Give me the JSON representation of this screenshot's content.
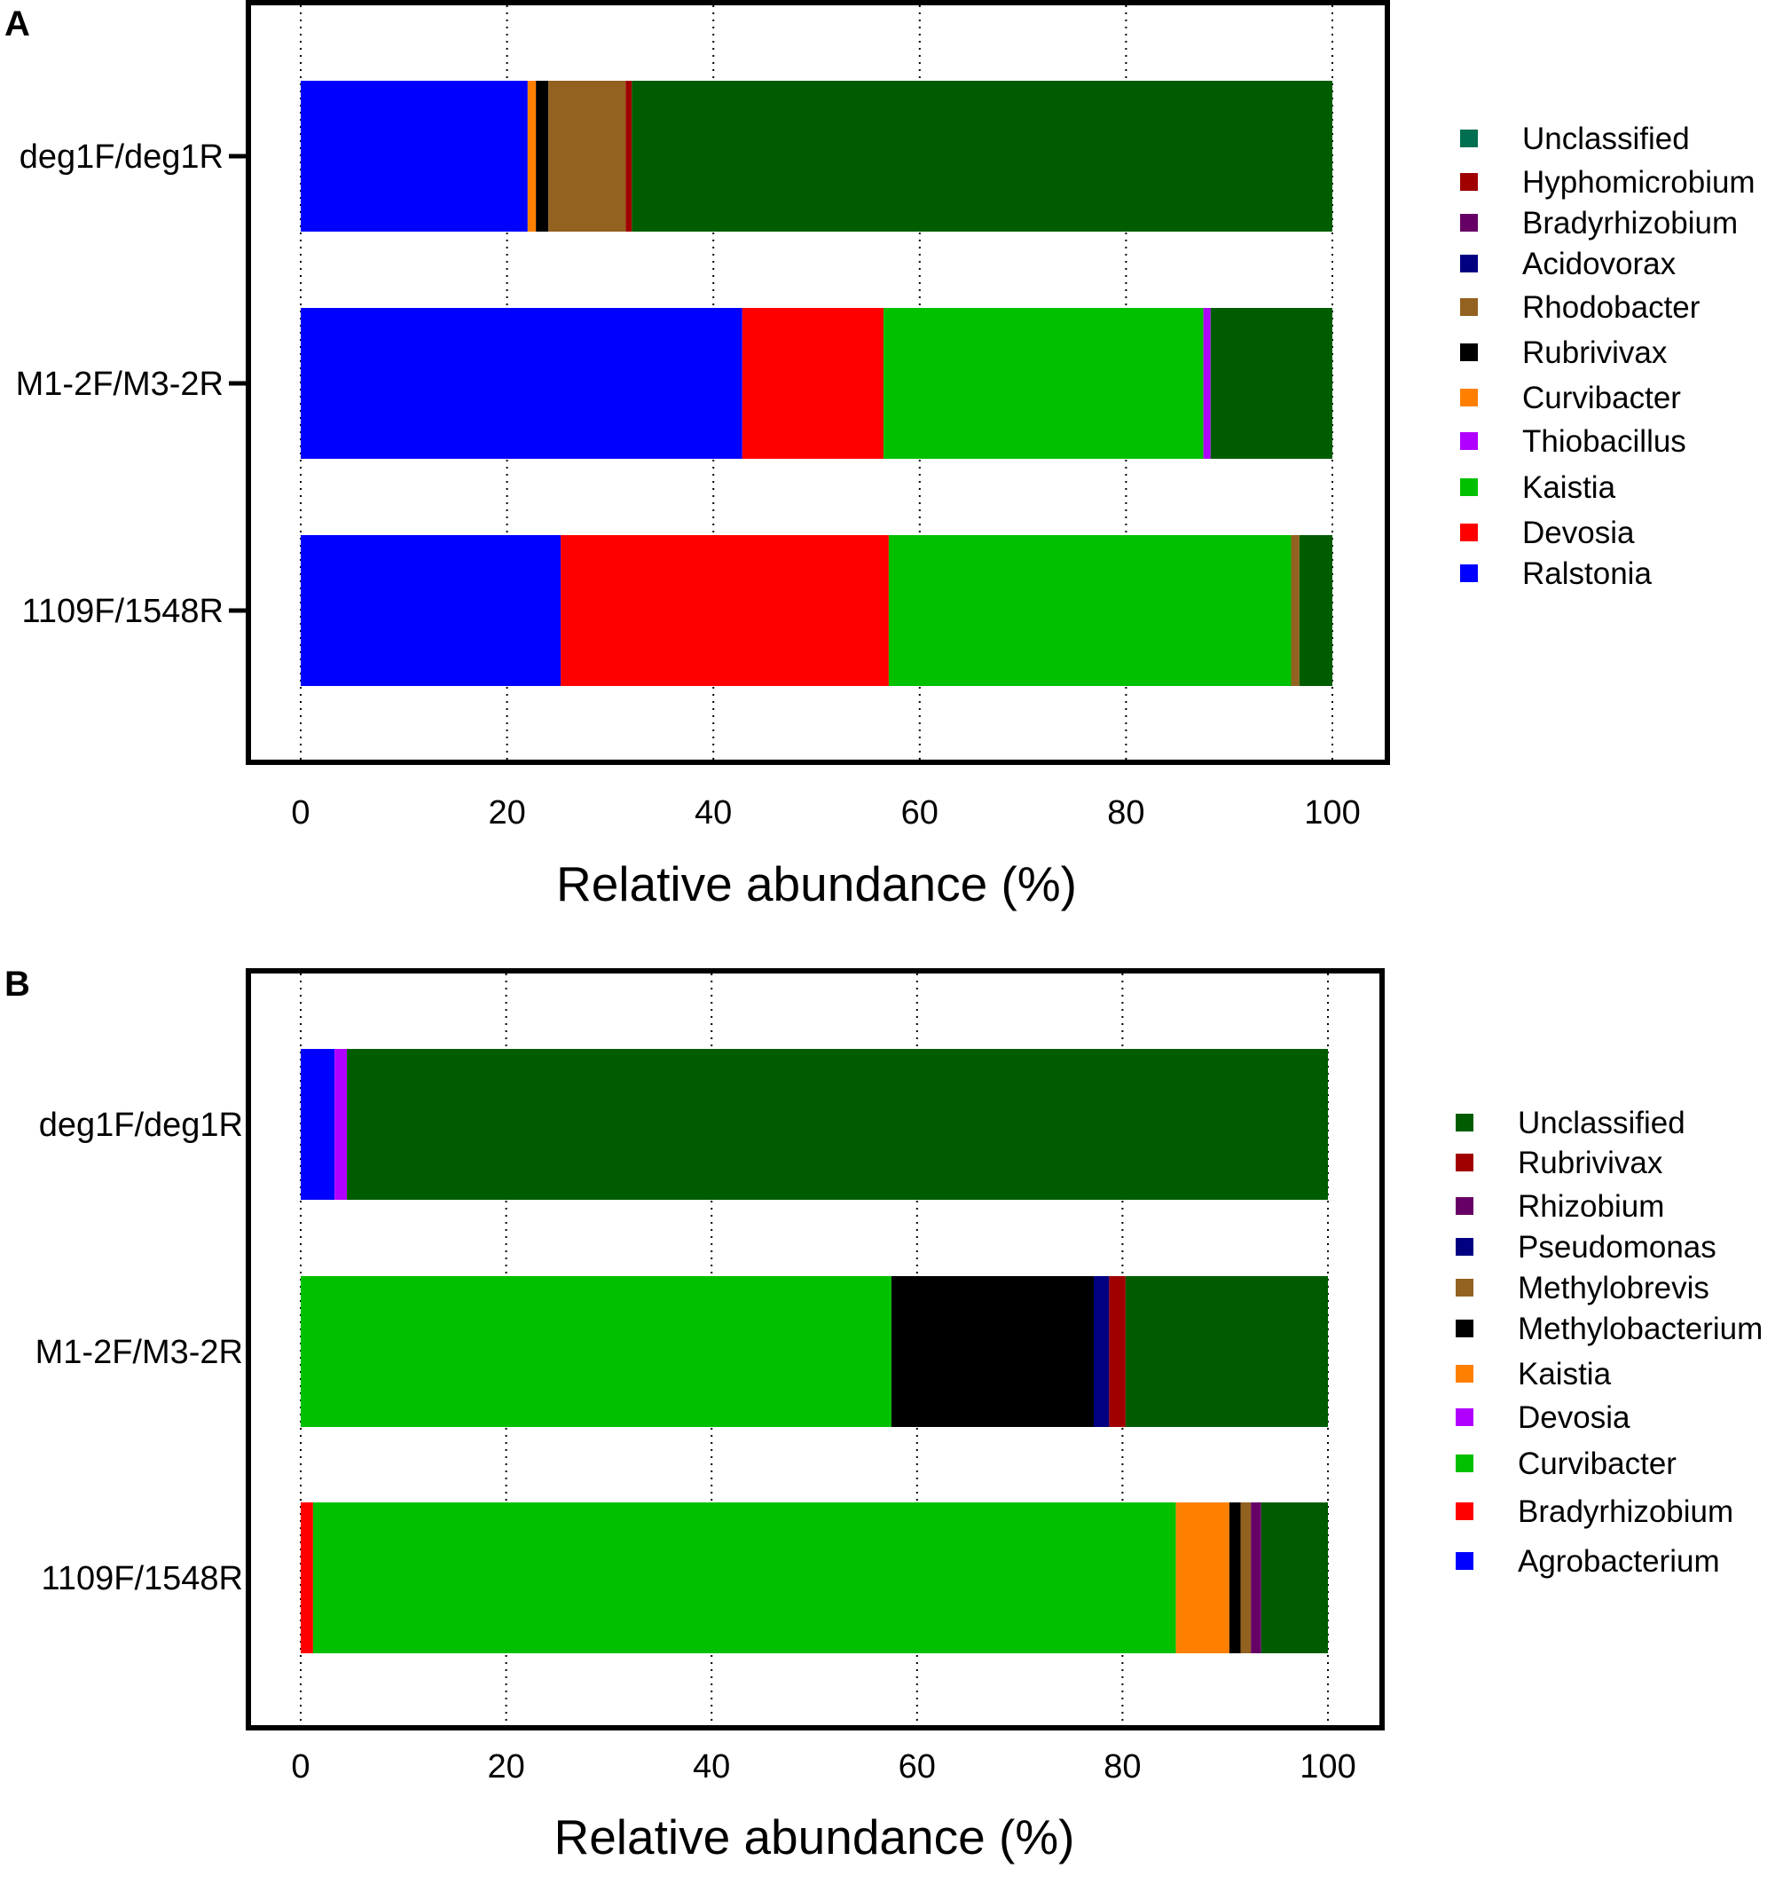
{
  "chart_data": [
    {
      "panel": "A",
      "type": "bar",
      "orientation": "horizontal",
      "stacked": true,
      "categories": [
        "deg1F/deg1R",
        "M1-2F/M3-2R",
        "1109F/1548R"
      ],
      "xlabel": "Relative abundance (%)",
      "xlim": [
        0,
        100
      ],
      "xticks": [
        0,
        20,
        40,
        60,
        80,
        100
      ],
      "grid": "vertical dotted",
      "legend": "right",
      "series": [
        {
          "name": "Ralstonia",
          "color": "#0000ff",
          "values": [
            22.0,
            42.8,
            25.2
          ]
        },
        {
          "name": "Devosia",
          "color": "#ff0000",
          "values": [
            0.0,
            13.7,
            31.8
          ]
        },
        {
          "name": "Kaistia",
          "color": "#00c000",
          "values": [
            0.0,
            31.0,
            39.0
          ]
        },
        {
          "name": "Thiobacillus",
          "color": "#b000ff",
          "values": [
            0.0,
            0.7,
            0.0
          ]
        },
        {
          "name": "Curvibacter",
          "color": "#ff8000",
          "values": [
            0.8,
            0.0,
            0.0
          ]
        },
        {
          "name": "Rubrivivax",
          "color": "#000000",
          "values": [
            1.2,
            0.0,
            0.0
          ]
        },
        {
          "name": "Rhodobacter",
          "color": "#936120",
          "values": [
            7.5,
            0.0,
            0.8
          ]
        },
        {
          "name": "Acidovorax",
          "color": "#000080",
          "values": [
            0.0,
            0.0,
            0.0
          ]
        },
        {
          "name": "Bradyrhizobium",
          "color": "#660066",
          "values": [
            0.0,
            0.0,
            0.0
          ]
        },
        {
          "name": "Hyphomicrobium",
          "color": "#a00000",
          "values": [
            0.6,
            0.0,
            0.0
          ]
        },
        {
          "name": "Unclassified",
          "color": "#005c00",
          "values": [
            67.9,
            11.8,
            3.2
          ]
        }
      ],
      "legend_order": [
        "Unclassified",
        "Hyphomicrobium",
        "Bradyrhizobium",
        "Acidovorax",
        "Rhodobacter",
        "Rubrivivax",
        "Curvibacter",
        "Thiobacillus",
        "Kaistia",
        "Devosia",
        "Ralstonia"
      ],
      "legend_colors": {
        "Unclassified": "#006e50"
      }
    },
    {
      "panel": "B",
      "type": "bar",
      "orientation": "horizontal",
      "stacked": true,
      "categories": [
        "deg1F/deg1R",
        "M1-2F/M3-2R",
        "1109F/1548R"
      ],
      "xlabel": "Relative abundance (%)",
      "xlim": [
        0,
        100
      ],
      "xticks": [
        0,
        20,
        40,
        60,
        80,
        100
      ],
      "grid": "vertical dotted",
      "legend": "right",
      "series": [
        {
          "name": "Agrobacterium",
          "color": "#0000ff",
          "values": [
            3.3,
            0.0,
            0.0
          ]
        },
        {
          "name": "Bradyrhizobium",
          "color": "#ff0000",
          "values": [
            0.0,
            0.0,
            1.2
          ]
        },
        {
          "name": "Curvibacter",
          "color": "#00c000",
          "values": [
            0.0,
            57.5,
            84.0
          ]
        },
        {
          "name": "Devosia",
          "color": "#b000ff",
          "values": [
            1.2,
            0.0,
            0.0
          ]
        },
        {
          "name": "Kaistia",
          "color": "#ff8000",
          "values": [
            0.0,
            0.0,
            5.2
          ]
        },
        {
          "name": "Methylobacterium",
          "color": "#000000",
          "values": [
            0.0,
            19.7,
            1.1
          ]
        },
        {
          "name": "Methylobrevis",
          "color": "#936120",
          "values": [
            0.0,
            0.0,
            1.0
          ]
        },
        {
          "name": "Pseudomonas",
          "color": "#000080",
          "values": [
            0.0,
            1.5,
            0.0
          ]
        },
        {
          "name": "Rhizobium",
          "color": "#660066",
          "values": [
            0.0,
            0.0,
            1.0
          ]
        },
        {
          "name": "Rubrivivax",
          "color": "#a00000",
          "values": [
            0.0,
            1.6,
            0.0
          ]
        },
        {
          "name": "Unclassified",
          "color": "#005c00",
          "values": [
            95.5,
            19.7,
            6.5
          ]
        }
      ],
      "legend_order": [
        "Unclassified",
        "Rubrivivax",
        "Rhizobium",
        "Pseudomonas",
        "Methylobrevis",
        "Methylobacterium",
        "Kaistia",
        "Devosia",
        "Curvibacter",
        "Bradyrhizobium",
        "Agrobacterium"
      ],
      "legend_colors": {}
    }
  ]
}
